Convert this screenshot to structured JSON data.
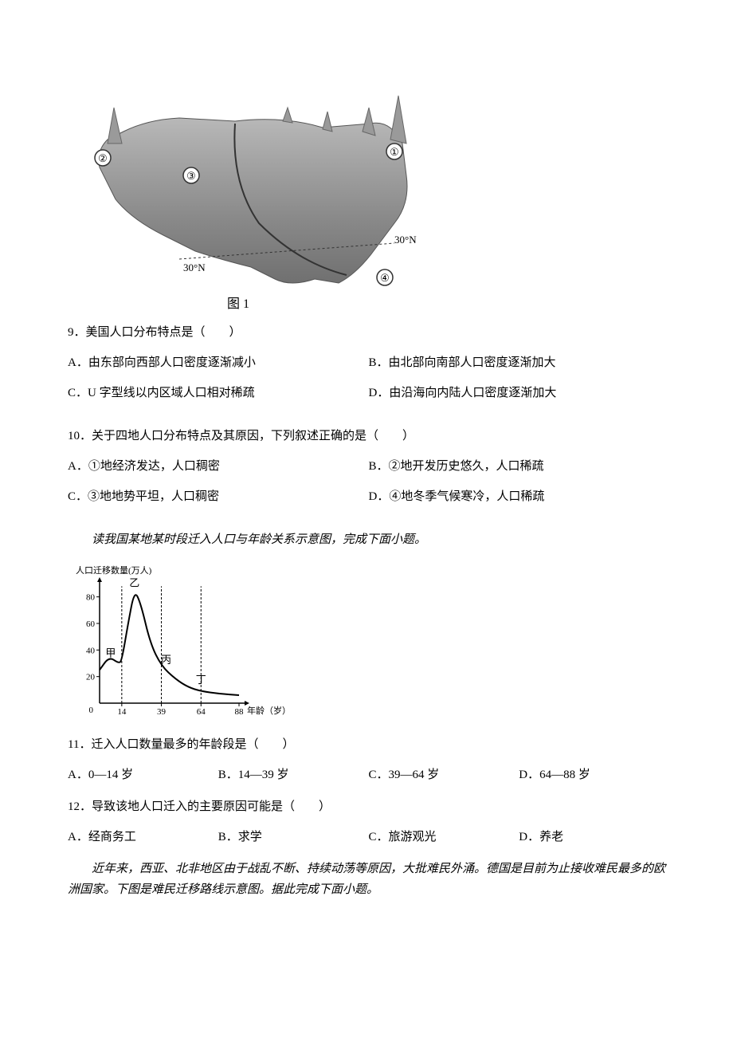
{
  "figure1": {
    "label": "图 1",
    "lat_left": "30°N",
    "lat_right": "30°N",
    "marker1": "①",
    "marker2": "②",
    "marker3": "③",
    "marker4": "④",
    "map_fill": "#999999",
    "map_stroke": "#555555",
    "circle_fill": "#ffffff",
    "circle_stroke": "#333333",
    "bg": "#ffffff"
  },
  "q9": {
    "stem": "9．美国人口分布特点是（　　）",
    "A": "A．由东部向西部人口密度逐渐减小",
    "B": "B．由北部向南部人口密度逐渐加大",
    "C": "C．U 字型线以内区域人口相对稀疏",
    "D": "D．由沿海向内陆人口密度逐渐加大"
  },
  "q10": {
    "stem": "10．关于四地人口分布特点及其原因，下列叙述正确的是（　　）",
    "A": "A．①地经济发达，人口稠密",
    "B": "B．②地开发历史悠久，人口稀疏",
    "C": "C．③地地势平坦，人口稠密",
    "D": "D．④地冬季气候寒冷，人口稀疏"
  },
  "intro1": {
    "text": "读我国某地某时段迁入人口与年龄关系示意图，完成下面小题。"
  },
  "figure2": {
    "y_label": "人口迁移数量(万人)",
    "x_label": "年龄（岁）",
    "y_ticks": [
      0,
      20,
      40,
      60,
      80
    ],
    "x_ticks": [
      0,
      14,
      39,
      64,
      88
    ],
    "labels": {
      "jia": "甲",
      "yi": "乙",
      "bing": "丙",
      "ding": "丁"
    },
    "curve": [
      {
        "x": 0,
        "y": 25
      },
      {
        "x": 6,
        "y": 35
      },
      {
        "x": 12,
        "y": 30
      },
      {
        "x": 14,
        "y": 32
      },
      {
        "x": 18,
        "y": 60
      },
      {
        "x": 22,
        "y": 85
      },
      {
        "x": 26,
        "y": 75
      },
      {
        "x": 32,
        "y": 45
      },
      {
        "x": 39,
        "y": 28
      },
      {
        "x": 48,
        "y": 18
      },
      {
        "x": 56,
        "y": 12
      },
      {
        "x": 64,
        "y": 9
      },
      {
        "x": 76,
        "y": 7
      },
      {
        "x": 88,
        "y": 6
      }
    ],
    "axis_color": "#000000",
    "curve_color": "#000000",
    "dash_color": "#000000"
  },
  "q11": {
    "stem": "11．迁入人口数量最多的年龄段是（　　）",
    "A": "A．0—14 岁",
    "B": "B．14—39 岁",
    "C": "C．39—64 岁",
    "D": "D．64—88 岁"
  },
  "q12": {
    "stem": "12．导致该地人口迁入的主要原因可能是（　　）",
    "A": "A．经商务工",
    "B": "B．求学",
    "C": "C．旅游观光",
    "D": "D．养老"
  },
  "intro2": {
    "text": "近年来，西亚、北非地区由于战乱不断、持续动荡等原因，大批难民外涌。德国是目前为止接收难民最多的欧洲国家。下图是难民迁移路线示意图。据此完成下面小题。"
  }
}
